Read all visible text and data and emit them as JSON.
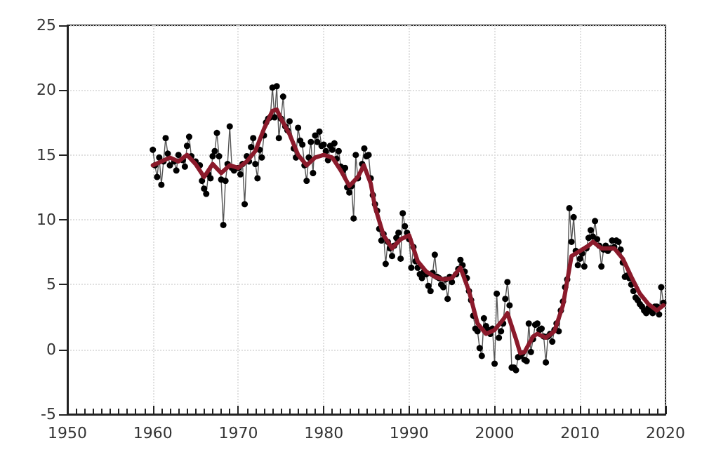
{
  "chart_data": {
    "type": "line",
    "xlim": [
      1950,
      2020
    ],
    "xticks": [
      1950,
      1960,
      1970,
      1980,
      1990,
      2000,
      2010,
      2020
    ],
    "ylim": [
      -5,
      25
    ],
    "yticks": [
      -5,
      0,
      5,
      10,
      15,
      20,
      25
    ],
    "grid": true,
    "series": [
      {
        "color": "#000000",
        "marker": "circle",
        "line_style": "solid",
        "x": [
          1960.0,
          1960.25,
          1960.5,
          1960.75,
          1961.0,
          1961.25,
          1961.5,
          1961.75,
          1962.0,
          1962.5,
          1962.75,
          1963.0,
          1963.5,
          1963.75,
          1964.0,
          1964.25,
          1964.5,
          1965.0,
          1965.5,
          1965.75,
          1966.0,
          1966.25,
          1966.5,
          1966.75,
          1967.0,
          1967.25,
          1967.5,
          1967.75,
          1968.0,
          1968.25,
          1968.5,
          1968.75,
          1969.0,
          1969.25,
          1969.5,
          1970.0,
          1970.25,
          1970.5,
          1970.75,
          1971.0,
          1971.25,
          1971.5,
          1971.75,
          1972.0,
          1972.25,
          1972.5,
          1972.75,
          1973.0,
          1973.25,
          1973.5,
          1973.75,
          1974.0,
          1974.25,
          1974.5,
          1974.75,
          1975.0,
          1975.25,
          1975.5,
          1975.75,
          1976.0,
          1976.5,
          1976.75,
          1977.0,
          1977.25,
          1977.5,
          1977.75,
          1978.0,
          1978.25,
          1978.5,
          1978.75,
          1979.0,
          1979.25,
          1979.5,
          1979.75,
          1980.0,
          1980.25,
          1980.5,
          1980.75,
          1981.0,
          1981.25,
          1981.5,
          1981.75,
          1982.0,
          1982.25,
          1982.5,
          1982.75,
          1983.0,
          1983.25,
          1983.5,
          1983.75,
          1984.0,
          1984.5,
          1984.75,
          1985.0,
          1985.25,
          1985.5,
          1985.75,
          1986.0,
          1986.25,
          1986.5,
          1986.75,
          1987.0,
          1987.25,
          1987.5,
          1987.75,
          1988.0,
          1988.25,
          1988.5,
          1988.75,
          1989.0,
          1989.25,
          1989.5,
          1989.75,
          1990.0,
          1990.25,
          1990.5,
          1990.75,
          1991.0,
          1991.25,
          1991.5,
          1991.75,
          1992.0,
          1992.25,
          1992.5,
          1992.75,
          1993.0,
          1993.25,
          1993.5,
          1993.75,
          1994.0,
          1994.25,
          1994.5,
          1994.75,
          1995.0,
          1995.5,
          1995.75,
          1996.0,
          1996.25,
          1996.5,
          1996.75,
          1997.0,
          1997.25,
          1997.5,
          1997.75,
          1998.0,
          1998.25,
          1998.5,
          1998.75,
          1999.0,
          1999.25,
          1999.5,
          1999.75,
          2000.0,
          2000.25,
          2000.5,
          2000.75,
          2001.0,
          2001.25,
          2001.5,
          2001.75,
          2002.0,
          2002.25,
          2002.5,
          2002.75,
          2003.0,
          2003.25,
          2003.5,
          2003.75,
          2004.0,
          2004.25,
          2004.5,
          2004.75,
          2005.0,
          2005.25,
          2005.5,
          2005.75,
          2006.0,
          2006.25,
          2006.5,
          2006.75,
          2007.0,
          2007.25,
          2007.5,
          2007.75,
          2008.0,
          2008.25,
          2008.5,
          2008.75,
          2009.0,
          2009.25,
          2009.5,
          2009.75,
          2010.0,
          2010.25,
          2010.5,
          2010.75,
          2011.0,
          2011.25,
          2011.5,
          2011.75,
          2012.0,
          2012.25,
          2012.5,
          2012.75,
          2013.0,
          2013.25,
          2013.5,
          2013.75,
          2014.0,
          2014.25,
          2014.5,
          2014.75,
          2015.0,
          2015.25,
          2015.5,
          2015.75,
          2016.0,
          2016.25,
          2016.5,
          2016.75,
          2017.0,
          2017.25,
          2017.5,
          2017.75,
          2018.0,
          2018.25,
          2018.5,
          2018.75,
          2019.0,
          2019.25,
          2019.5,
          2019.75
        ],
        "values": [
          15.4,
          14.2,
          13.3,
          14.8,
          12.7,
          14.5,
          16.3,
          15.1,
          14.2,
          14.5,
          13.8,
          15.0,
          14.6,
          14.1,
          15.7,
          16.4,
          14.9,
          14.5,
          14.2,
          13.0,
          12.4,
          12.0,
          13.5,
          13.2,
          14.9,
          15.3,
          16.7,
          14.9,
          13.1,
          9.6,
          13.0,
          14.3,
          17.2,
          14.0,
          13.8,
          14.0,
          13.5,
          14.3,
          11.2,
          14.9,
          14.5,
          15.6,
          16.3,
          14.3,
          13.2,
          15.4,
          14.8,
          16.5,
          17.5,
          17.8,
          17.9,
          20.2,
          17.9,
          20.3,
          16.3,
          17.8,
          19.5,
          17.2,
          16.9,
          17.6,
          15.5,
          14.8,
          17.1,
          16.1,
          15.8,
          14.2,
          13.0,
          14.8,
          16.0,
          13.6,
          16.5,
          16.0,
          16.8,
          15.7,
          15.8,
          15.3,
          14.6,
          15.7,
          15.4,
          15.9,
          14.7,
          15.3,
          14.1,
          13.8,
          14.0,
          12.5,
          12.1,
          12.6,
          10.1,
          15.0,
          13.2,
          14.3,
          15.5,
          14.9,
          15.0,
          13.2,
          11.9,
          11.2,
          10.7,
          9.3,
          8.4,
          8.9,
          6.6,
          8.3,
          7.8,
          7.2,
          8.0,
          8.6,
          9.0,
          7.0,
          10.5,
          9.5,
          9.0,
          8.5,
          6.3,
          7.9,
          6.8,
          6.3,
          5.8,
          5.5,
          6.0,
          5.8,
          4.9,
          4.5,
          5.9,
          7.3,
          5.6,
          5.5,
          5.0,
          4.8,
          5.4,
          3.9,
          5.6,
          5.2,
          5.8,
          6.2,
          6.9,
          6.5,
          6.0,
          5.5,
          4.5,
          3.8,
          2.6,
          1.6,
          1.4,
          0.1,
          -0.5,
          2.4,
          1.8,
          1.5,
          1.2,
          1.6,
          -1.1,
          4.3,
          0.9,
          1.4,
          2.0,
          3.9,
          5.2,
          3.4,
          -1.4,
          -1.4,
          -1.6,
          -0.6,
          -0.5,
          -0.3,
          -0.8,
          -0.9,
          2.0,
          -0.2,
          0.8,
          1.9,
          2.0,
          1.5,
          1.6,
          1.0,
          -1.0,
          1.0,
          1.2,
          0.6,
          1.5,
          2.0,
          1.4,
          3.0,
          3.7,
          4.8,
          5.4,
          10.9,
          8.3,
          10.2,
          7.6,
          6.5,
          7.0,
          7.4,
          6.4,
          7.8,
          8.6,
          9.2,
          8.7,
          9.9,
          8.5,
          8.0,
          6.4,
          7.7,
          8.0,
          7.6,
          7.8,
          8.4,
          7.9,
          8.4,
          8.3,
          7.7,
          6.7,
          5.6,
          5.7,
          5.5,
          5.0,
          4.5,
          4.0,
          3.8,
          3.5,
          3.3,
          3.0,
          2.8,
          3.2,
          3.0,
          2.8,
          3.3,
          3.3,
          2.7,
          4.8,
          3.6
        ]
      },
      {
        "color": "#8b1a2b",
        "marker": "none",
        "line_style": "solid",
        "x": [
          1960,
          1961,
          1962,
          1963,
          1964,
          1965,
          1966,
          1967,
          1968,
          1969,
          1970,
          1971,
          1972,
          1973,
          1974,
          1974.5,
          1975,
          1976,
          1977,
          1978,
          1979,
          1980,
          1981,
          1982,
          1983,
          1984,
          1984.7,
          1985.5,
          1986,
          1987,
          1988,
          1989,
          1990,
          1991,
          1992,
          1993,
          1994,
          1995,
          1996,
          1997,
          1998,
          1999,
          2000,
          2001,
          2001.5,
          2002.5,
          2003,
          2003.5,
          2004.5,
          2005,
          2006,
          2007,
          2008,
          2009,
          2010,
          2011,
          2011.5,
          2012.5,
          2014,
          2015,
          2016,
          2017,
          2018,
          2019,
          2019.75
        ],
        "values": [
          14.2,
          14.5,
          14.8,
          14.5,
          15.0,
          14.3,
          13.3,
          14.3,
          13.6,
          14.2,
          14.0,
          14.5,
          15.3,
          17.0,
          18.4,
          18.5,
          17.8,
          16.6,
          15.0,
          14.2,
          14.8,
          15.0,
          14.8,
          13.8,
          12.6,
          13.3,
          14.2,
          12.8,
          11.0,
          8.8,
          7.8,
          8.5,
          8.8,
          6.8,
          6.0,
          5.6,
          5.4,
          5.5,
          6.3,
          4.5,
          2.0,
          1.2,
          1.5,
          2.3,
          2.8,
          0.8,
          -0.3,
          -0.2,
          1.0,
          1.2,
          0.9,
          1.4,
          3.4,
          7.2,
          7.6,
          8.0,
          8.3,
          7.8,
          7.8,
          7.0,
          5.6,
          4.3,
          3.5,
          3.0,
          3.4
        ]
      }
    ]
  }
}
